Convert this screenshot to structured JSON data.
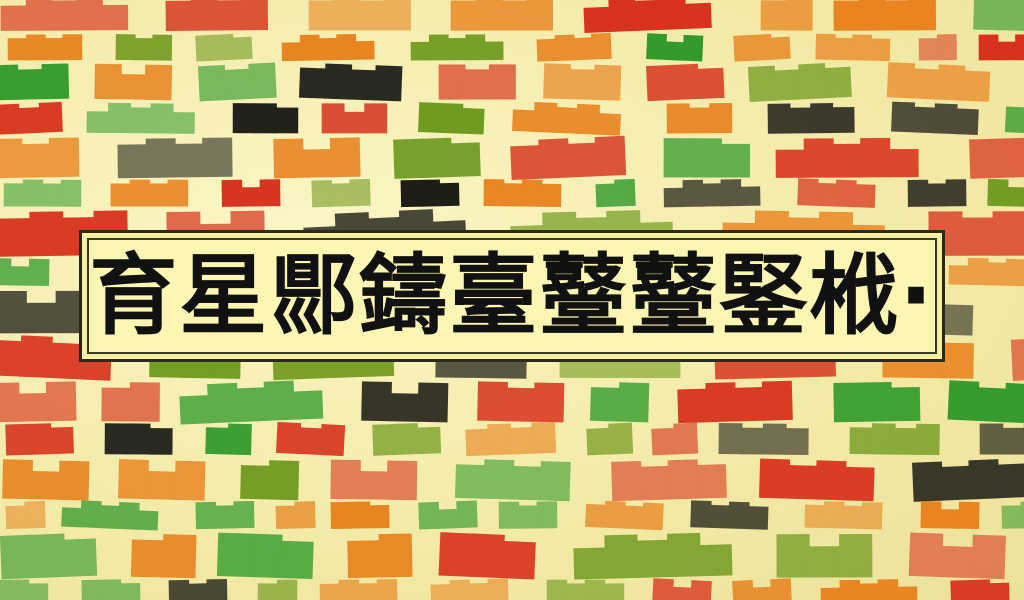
{
  "banner": {
    "text": "育星郻鑄臺鼞鼞鋻栰·"
  },
  "colors": {
    "background": "#f4efb4",
    "red": "#d8321c",
    "orange": "#e9831f",
    "green": "#2f9a2a",
    "olive": "#6f9a1e",
    "black": "#1a1a14",
    "banner_fill": "#fbf7b3"
  }
}
